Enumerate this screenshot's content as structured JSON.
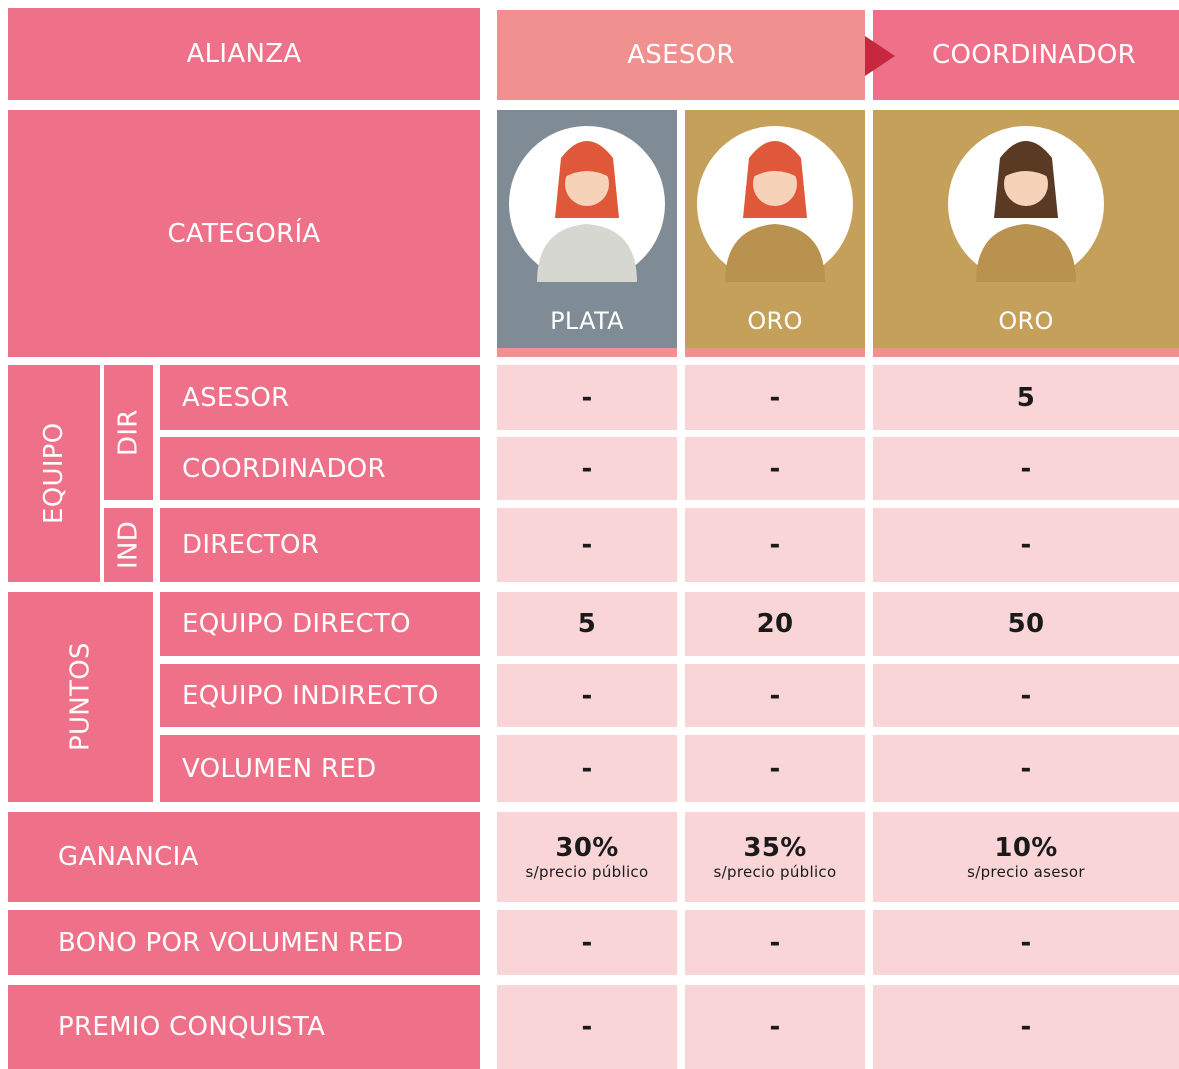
{
  "header": {
    "alianza": "ALIANZA",
    "asesor": "ASESOR",
    "coordinador": "COORDINADOR"
  },
  "categoria": {
    "label": "CATEGORÍA",
    "levels": [
      "PLATA",
      "ORO",
      "ORO"
    ]
  },
  "equipo": {
    "label": "EQUIPO",
    "dir": "DIR",
    "ind": "IND",
    "rows": [
      {
        "label": "ASESOR",
        "values": [
          "-",
          "-",
          5
        ]
      },
      {
        "label": "COORDINADOR",
        "values": [
          "-",
          "-",
          "-"
        ]
      },
      {
        "label": "DIRECTOR",
        "values": [
          "-",
          "-",
          "-"
        ]
      }
    ]
  },
  "puntos": {
    "label": "PUNTOS",
    "rows": [
      {
        "label": "EQUIPO DIRECTO",
        "values": [
          5,
          20,
          50
        ]
      },
      {
        "label": "EQUIPO INDIRECTO",
        "values": [
          "-",
          "-",
          "-"
        ]
      },
      {
        "label": "VOLUMEN RED",
        "values": [
          "-",
          "-",
          "-"
        ]
      }
    ]
  },
  "ganancia": {
    "label": "GANANCIA",
    "values": [
      {
        "value": "30%",
        "note": "s/precio público"
      },
      {
        "value": "35%",
        "note": "s/precio público"
      },
      {
        "value": "10%",
        "note": "s/precio asesor"
      }
    ]
  },
  "bono": {
    "label": "BONO POR VOLUMEN RED",
    "values": [
      "-",
      "-",
      "-"
    ]
  },
  "premio": {
    "label": "PREMIO CONQUISTA",
    "values": [
      "-",
      "-",
      "-"
    ]
  }
}
